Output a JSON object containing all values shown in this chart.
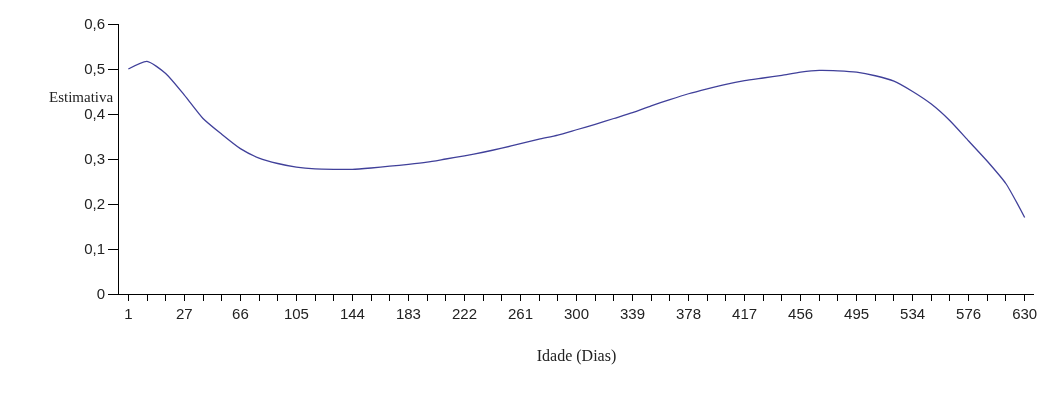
{
  "chart_data": {
    "type": "line",
    "xlabel": "Idade (Dias)",
    "ylabel": "Estimativa",
    "categories": [
      "1",
      null,
      null,
      "27",
      null,
      null,
      "66",
      null,
      null,
      "105",
      null,
      null,
      "144",
      null,
      null,
      "183",
      null,
      null,
      "222",
      null,
      null,
      "261",
      null,
      null,
      "300",
      null,
      null,
      "339",
      null,
      null,
      "378",
      null,
      null,
      "417",
      null,
      null,
      "456",
      null,
      null,
      "495",
      null,
      null,
      "534",
      null,
      null,
      "576",
      null,
      null,
      "630"
    ],
    "series": [
      {
        "color": "#40409a",
        "values": [
          0.5,
          0.517,
          0.49,
          0.442,
          0.39,
          0.355,
          0.323,
          0.302,
          0.29,
          0.282,
          0.278,
          0.277,
          0.277,
          0.28,
          0.284,
          0.288,
          0.293,
          0.3,
          0.307,
          0.315,
          0.324,
          0.334,
          0.344,
          0.353,
          0.365,
          0.377,
          0.39,
          0.403,
          0.418,
          0.432,
          0.445,
          0.456,
          0.466,
          0.474,
          0.48,
          0.486,
          0.493,
          0.497,
          0.496,
          0.493,
          0.485,
          0.473,
          0.45,
          0.422,
          0.385,
          0.34,
          0.295,
          0.245,
          0.17
        ]
      }
    ],
    "ylim": [
      0,
      0.6
    ],
    "yticks": [
      0,
      {
        "value": 0.1,
        "label": "0,1"
      },
      {
        "value": 0.2,
        "label": "0,2"
      },
      {
        "value": 0.3,
        "label": "0,3"
      },
      {
        "value": 0.4,
        "label": "0,4"
      },
      {
        "value": 0.5,
        "label": "0,5"
      },
      {
        "value": 0.6,
        "label": "0,6"
      }
    ],
    "marker": "none",
    "line_style": "solid"
  }
}
